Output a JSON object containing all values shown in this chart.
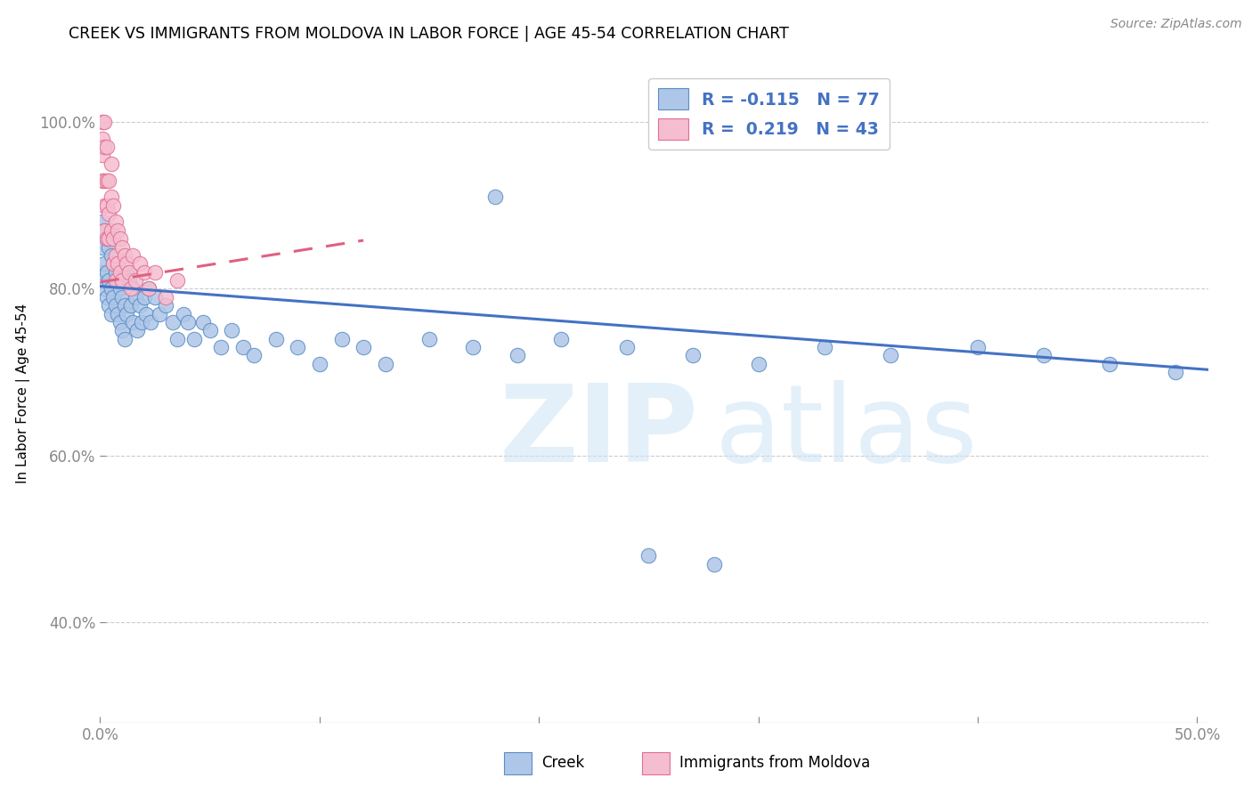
{
  "title": "CREEK VS IMMIGRANTS FROM MOLDOVA IN LABOR FORCE | AGE 45-54 CORRELATION CHART",
  "source": "Source: ZipAtlas.com",
  "ylabel": "In Labor Force | Age 45-54",
  "xlim": [
    0.0,
    0.505
  ],
  "ylim": [
    0.28,
    1.07
  ],
  "xticks": [
    0.0,
    0.1,
    0.2,
    0.3,
    0.4,
    0.5
  ],
  "xticklabels": [
    "0.0%",
    "",
    "",
    "",
    "",
    "50.0%"
  ],
  "yticks": [
    0.4,
    0.6,
    0.8,
    1.0
  ],
  "yticklabels": [
    "40.0%",
    "60.0%",
    "80.0%",
    "100.0%"
  ],
  "creek_color": "#aec6e8",
  "creek_edge": "#5b8ec4",
  "moldova_color": "#f5bdd0",
  "moldova_edge": "#e07090",
  "creek_line_color": "#4472c4",
  "moldova_line_color": "#e06080",
  "creek_R": -0.115,
  "creek_N": 77,
  "moldova_R": 0.219,
  "moldova_N": 43,
  "creek_trend": [
    0.0,
    0.803,
    0.505,
    0.703
  ],
  "moldova_trend": [
    0.0,
    0.808,
    0.12,
    0.858
  ],
  "creek_x": [
    0.001,
    0.001,
    0.001,
    0.002,
    0.002,
    0.002,
    0.003,
    0.003,
    0.003,
    0.004,
    0.004,
    0.004,
    0.005,
    0.005,
    0.005,
    0.006,
    0.006,
    0.007,
    0.007,
    0.008,
    0.008,
    0.009,
    0.009,
    0.01,
    0.01,
    0.011,
    0.011,
    0.012,
    0.012,
    0.013,
    0.014,
    0.015,
    0.015,
    0.016,
    0.017,
    0.018,
    0.019,
    0.02,
    0.021,
    0.022,
    0.023,
    0.025,
    0.027,
    0.03,
    0.033,
    0.035,
    0.038,
    0.04,
    0.043,
    0.047,
    0.05,
    0.055,
    0.06,
    0.065,
    0.07,
    0.08,
    0.09,
    0.1,
    0.11,
    0.12,
    0.13,
    0.15,
    0.17,
    0.19,
    0.21,
    0.24,
    0.27,
    0.3,
    0.33,
    0.36,
    0.4,
    0.43,
    0.46,
    0.49,
    0.25,
    0.28,
    0.18
  ],
  "creek_y": [
    0.88,
    0.85,
    0.82,
    0.87,
    0.83,
    0.8,
    0.86,
    0.82,
    0.79,
    0.85,
    0.81,
    0.78,
    0.84,
    0.8,
    0.77,
    0.83,
    0.79,
    0.82,
    0.78,
    0.81,
    0.77,
    0.8,
    0.76,
    0.79,
    0.75,
    0.78,
    0.74,
    0.82,
    0.77,
    0.81,
    0.78,
    0.8,
    0.76,
    0.79,
    0.75,
    0.78,
    0.76,
    0.79,
    0.77,
    0.8,
    0.76,
    0.79,
    0.77,
    0.78,
    0.76,
    0.74,
    0.77,
    0.76,
    0.74,
    0.76,
    0.75,
    0.73,
    0.75,
    0.73,
    0.72,
    0.74,
    0.73,
    0.71,
    0.74,
    0.73,
    0.71,
    0.74,
    0.73,
    0.72,
    0.74,
    0.73,
    0.72,
    0.71,
    0.73,
    0.72,
    0.73,
    0.72,
    0.71,
    0.7,
    0.48,
    0.47,
    0.91
  ],
  "moldova_x": [
    0.001,
    0.001,
    0.001,
    0.001,
    0.002,
    0.002,
    0.002,
    0.002,
    0.002,
    0.003,
    0.003,
    0.003,
    0.003,
    0.004,
    0.004,
    0.004,
    0.005,
    0.005,
    0.005,
    0.006,
    0.006,
    0.006,
    0.007,
    0.007,
    0.007,
    0.008,
    0.008,
    0.009,
    0.009,
    0.01,
    0.01,
    0.011,
    0.012,
    0.013,
    0.014,
    0.015,
    0.016,
    0.018,
    0.02,
    0.022,
    0.025,
    0.03,
    0.035
  ],
  "moldova_y": [
    1.0,
    0.98,
    0.96,
    0.93,
    1.0,
    0.97,
    0.93,
    0.9,
    0.87,
    0.97,
    0.93,
    0.9,
    0.86,
    0.93,
    0.89,
    0.86,
    0.95,
    0.91,
    0.87,
    0.9,
    0.86,
    0.83,
    0.88,
    0.84,
    0.81,
    0.87,
    0.83,
    0.86,
    0.82,
    0.85,
    0.81,
    0.84,
    0.83,
    0.82,
    0.8,
    0.84,
    0.81,
    0.83,
    0.82,
    0.8,
    0.82,
    0.79,
    0.81
  ]
}
